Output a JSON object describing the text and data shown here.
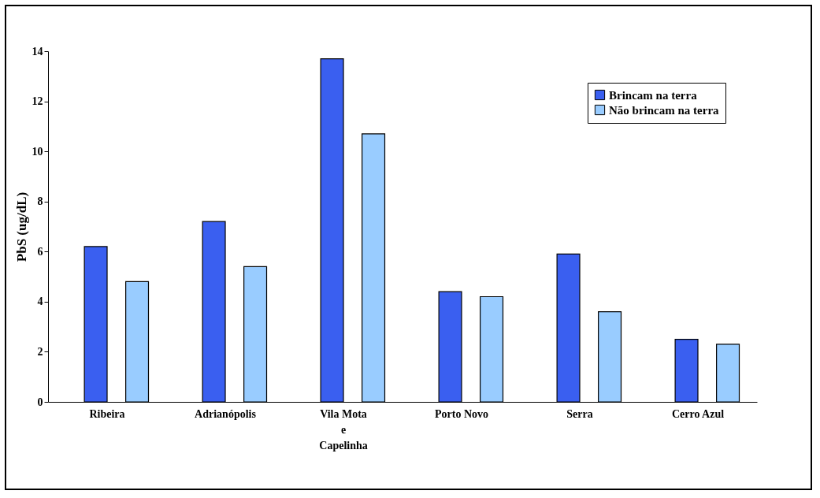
{
  "chart_data": {
    "type": "bar",
    "ylabel": "PbS (ug/dL)",
    "categories": [
      "Ribeira",
      "Adrianópolis",
      "Vila Mota\ne\nCapelinha",
      "Porto Novo",
      "Serra",
      "Cerro Azul"
    ],
    "series": [
      {
        "name": "Brincam na terra",
        "color": "#3a5ff0",
        "values": [
          6.2,
          7.2,
          13.7,
          4.4,
          5.9,
          2.5
        ]
      },
      {
        "name": "Não brincam na terra",
        "color": "#99ccff",
        "values": [
          4.8,
          5.4,
          10.7,
          4.2,
          3.6,
          2.3
        ]
      }
    ],
    "ylim": [
      0,
      14
    ],
    "yticks": [
      0,
      2,
      4,
      6,
      8,
      10,
      12,
      14
    ],
    "grid": false,
    "legend": "top right"
  }
}
